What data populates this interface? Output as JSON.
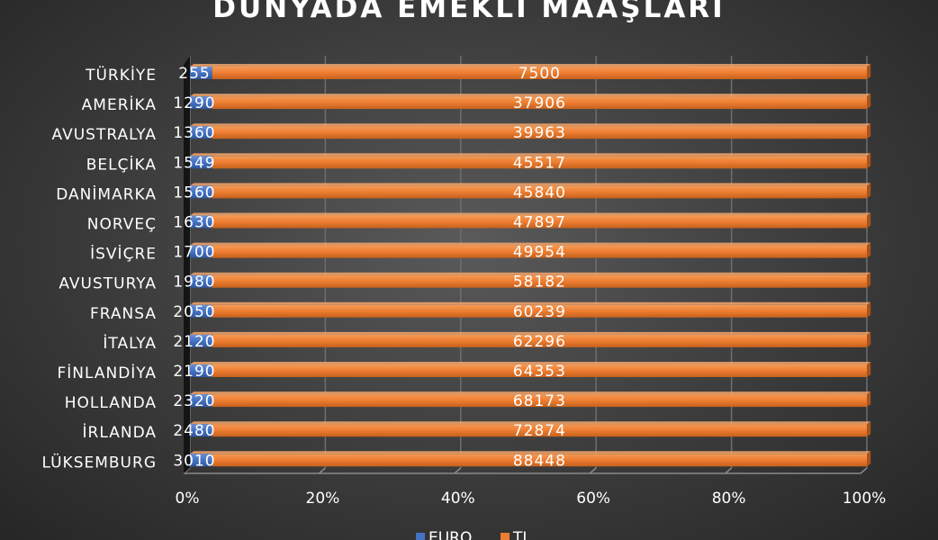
{
  "chart_data": {
    "type": "bar",
    "orientation": "horizontal",
    "stacking": "percent",
    "title": "DÜNYADA EMEKLİ MAAŞLARI",
    "categories": [
      "TÜRKİYE",
      "AMERİKA",
      "AVUSTRALYA",
      "BELÇİKA",
      "DANİMARKA",
      "NORVEÇ",
      "İSVİÇRE",
      "AVUSTURYA",
      "FRANSA",
      "İTALYA",
      "FİNLANDİYA",
      "HOLLANDA",
      "İRLANDA",
      "LÜKSEMBURG"
    ],
    "series": [
      {
        "name": "EURO",
        "color": "#4472c4",
        "values": [
          255,
          1290,
          1360,
          1549,
          1560,
          1630,
          1700,
          1980,
          2050,
          2120,
          2190,
          2320,
          2480,
          3010
        ]
      },
      {
        "name": "TL",
        "color": "#ed7d31",
        "values": [
          7500,
          37906,
          39963,
          45517,
          45840,
          47897,
          49954,
          58182,
          60239,
          62296,
          64353,
          68173,
          72874,
          88448
        ]
      }
    ],
    "x_ticks": [
      "0%",
      "20%",
      "40%",
      "60%",
      "80%",
      "100%"
    ],
    "xlim": [
      0,
      100
    ],
    "grid": true,
    "legend_position": "bottom"
  }
}
